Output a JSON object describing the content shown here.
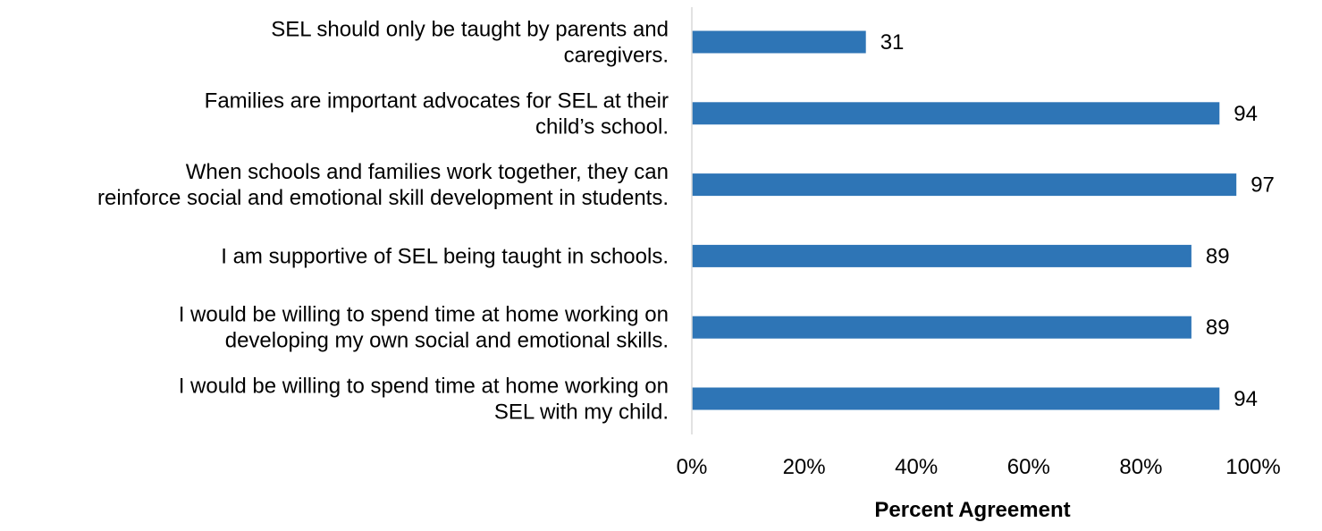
{
  "chart_data": {
    "type": "bar",
    "orientation": "horizontal",
    "categories": [
      [
        "SEL should only be taught by parents and",
        "caregivers."
      ],
      [
        "Families are important advocates for SEL at their",
        "child’s school."
      ],
      [
        "When schools and families work together, they can",
        "reinforce social and emotional skill development in students."
      ],
      [
        "I am supportive of SEL being taught in schools."
      ],
      [
        "I would be willing to spend time at home working on",
        "developing my own social and emotional skills."
      ],
      [
        "I would be willing to spend time at home working on",
        "SEL with my child."
      ]
    ],
    "values": [
      31,
      94,
      97,
      89,
      89,
      94
    ],
    "value_labels": [
      "31",
      "94",
      "97",
      "89",
      "89",
      "94"
    ],
    "xlim": [
      0,
      100
    ],
    "xticks": [
      "0%",
      "20%",
      "40%",
      "60%",
      "80%",
      "100%"
    ],
    "xlabel": "Percent Agreement",
    "ylabel": "",
    "title": "",
    "grid": false,
    "bar_color": "#2E75B6",
    "axis_color": "#D9D9D9"
  }
}
